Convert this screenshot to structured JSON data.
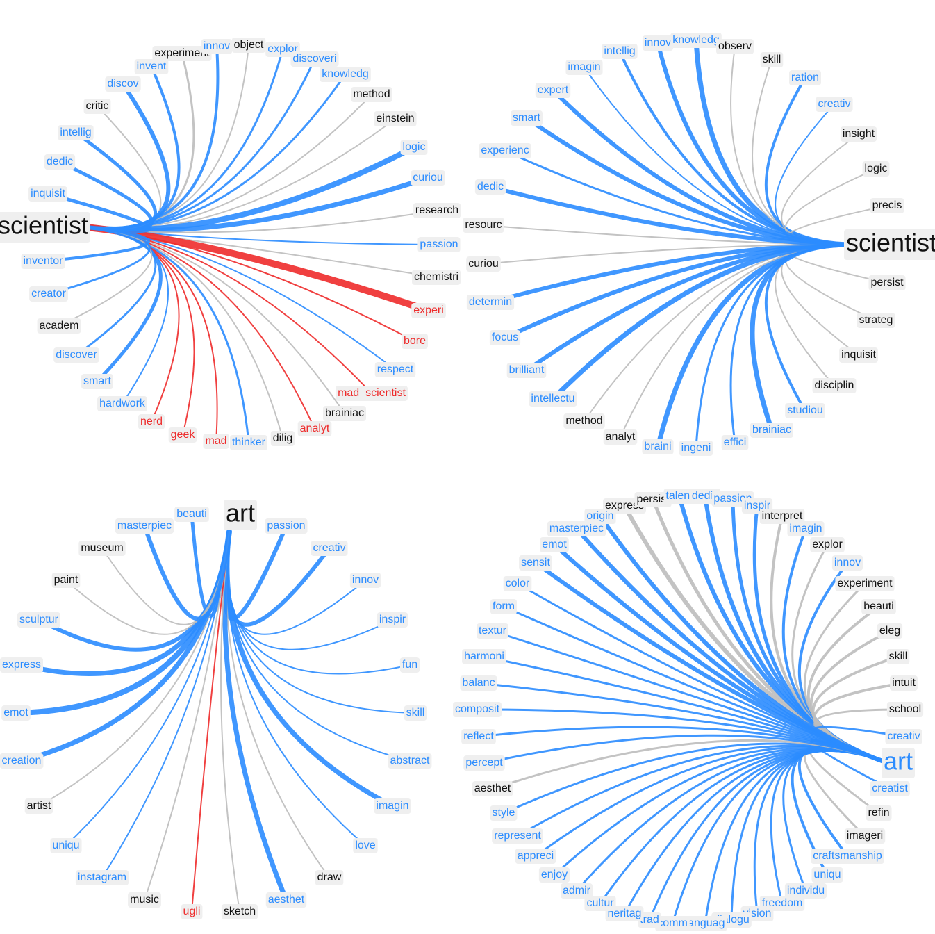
{
  "graphs": [
    {
      "center": {
        "label": "scientist",
        "color": "#111111"
      },
      "nodes": [
        {
          "label": "experiment",
          "color": "#111111"
        },
        {
          "label": "innov",
          "color": "#2b8cff"
        },
        {
          "label": "object",
          "color": "#111111"
        },
        {
          "label": "explor",
          "color": "#2b8cff"
        },
        {
          "label": "discoveri",
          "color": "#2b8cff"
        },
        {
          "label": "knowledg",
          "color": "#2b8cff"
        },
        {
          "label": "method",
          "color": "#111111"
        },
        {
          "label": "einstein",
          "color": "#111111"
        },
        {
          "label": "logic",
          "color": "#2b8cff"
        },
        {
          "label": "curiou",
          "color": "#2b8cff"
        },
        {
          "label": "research",
          "color": "#111111"
        },
        {
          "label": "passion",
          "color": "#2b8cff"
        },
        {
          "label": "chemistri",
          "color": "#111111"
        },
        {
          "label": "experi",
          "color": "#ee2b2b"
        },
        {
          "label": "bore",
          "color": "#ee2b2b"
        },
        {
          "label": "respect",
          "color": "#2b8cff"
        },
        {
          "label": "mad_scientist",
          "color": "#ee2b2b"
        },
        {
          "label": "brainiac",
          "color": "#111111"
        },
        {
          "label": "analyt",
          "color": "#ee2b2b"
        },
        {
          "label": "dilig",
          "color": "#111111"
        },
        {
          "label": "thinker",
          "color": "#2b8cff"
        },
        {
          "label": "mad",
          "color": "#ee2b2b"
        },
        {
          "label": "geek",
          "color": "#ee2b2b"
        },
        {
          "label": "nerd",
          "color": "#ee2b2b"
        },
        {
          "label": "hardwork",
          "color": "#2b8cff"
        },
        {
          "label": "smart",
          "color": "#2b8cff"
        },
        {
          "label": "discover",
          "color": "#2b8cff"
        },
        {
          "label": "academ",
          "color": "#111111"
        },
        {
          "label": "creator",
          "color": "#2b8cff"
        },
        {
          "label": "inventor",
          "color": "#2b8cff"
        },
        {
          "label": "inquisit",
          "color": "#2b8cff"
        },
        {
          "label": "dedic",
          "color": "#2b8cff"
        },
        {
          "label": "intellig",
          "color": "#2b8cff"
        },
        {
          "label": "critic",
          "color": "#111111"
        },
        {
          "label": "discov",
          "color": "#2b8cff"
        },
        {
          "label": "invent",
          "color": "#2b8cff"
        }
      ]
    },
    {
      "center": {
        "label": "scientist",
        "color": "#111111"
      },
      "nodes": [
        {
          "label": "innov",
          "color": "#2b8cff"
        },
        {
          "label": "knowledg",
          "color": "#2b8cff"
        },
        {
          "label": "observ",
          "color": "#111111"
        },
        {
          "label": "skill",
          "color": "#111111"
        },
        {
          "label": "ration",
          "color": "#2b8cff"
        },
        {
          "label": "creativ",
          "color": "#2b8cff"
        },
        {
          "label": "insight",
          "color": "#111111"
        },
        {
          "label": "logic",
          "color": "#111111"
        },
        {
          "label": "precis",
          "color": "#111111"
        },
        {
          "label": "persist",
          "color": "#111111"
        },
        {
          "label": "strateg",
          "color": "#111111"
        },
        {
          "label": "inquisit",
          "color": "#111111"
        },
        {
          "label": "disciplin",
          "color": "#111111"
        },
        {
          "label": "studiou",
          "color": "#2b8cff"
        },
        {
          "label": "brainiac",
          "color": "#2b8cff"
        },
        {
          "label": "effici",
          "color": "#2b8cff"
        },
        {
          "label": "ingeni",
          "color": "#2b8cff"
        },
        {
          "label": "braini",
          "color": "#2b8cff"
        },
        {
          "label": "analyt",
          "color": "#111111"
        },
        {
          "label": "method",
          "color": "#111111"
        },
        {
          "label": "intellectu",
          "color": "#2b8cff"
        },
        {
          "label": "brilliant",
          "color": "#2b8cff"
        },
        {
          "label": "focus",
          "color": "#2b8cff"
        },
        {
          "label": "determin",
          "color": "#2b8cff"
        },
        {
          "label": "curiou",
          "color": "#111111"
        },
        {
          "label": "resourc",
          "color": "#111111"
        },
        {
          "label": "dedic",
          "color": "#2b8cff"
        },
        {
          "label": "experienc",
          "color": "#2b8cff"
        },
        {
          "label": "smart",
          "color": "#2b8cff"
        },
        {
          "label": "expert",
          "color": "#2b8cff"
        },
        {
          "label": "imagin",
          "color": "#2b8cff"
        },
        {
          "label": "intellig",
          "color": "#2b8cff"
        }
      ]
    },
    {
      "center": {
        "label": "art",
        "color": "#111111"
      },
      "nodes": [
        {
          "label": "beauti",
          "color": "#2b8cff"
        },
        {
          "label": "passion",
          "color": "#2b8cff"
        },
        {
          "label": "creativ",
          "color": "#2b8cff"
        },
        {
          "label": "innov",
          "color": "#2b8cff"
        },
        {
          "label": "inspir",
          "color": "#2b8cff"
        },
        {
          "label": "fun",
          "color": "#2b8cff"
        },
        {
          "label": "skill",
          "color": "#2b8cff"
        },
        {
          "label": "abstract",
          "color": "#2b8cff"
        },
        {
          "label": "imagin",
          "color": "#2b8cff"
        },
        {
          "label": "love",
          "color": "#2b8cff"
        },
        {
          "label": "draw",
          "color": "#111111"
        },
        {
          "label": "aesthet",
          "color": "#2b8cff"
        },
        {
          "label": "sketch",
          "color": "#111111"
        },
        {
          "label": "ugli",
          "color": "#ee2b2b"
        },
        {
          "label": "music",
          "color": "#111111"
        },
        {
          "label": "instagram",
          "color": "#2b8cff"
        },
        {
          "label": "uniqu",
          "color": "#2b8cff"
        },
        {
          "label": "artist",
          "color": "#111111"
        },
        {
          "label": "creation",
          "color": "#2b8cff"
        },
        {
          "label": "emot",
          "color": "#2b8cff"
        },
        {
          "label": "express",
          "color": "#2b8cff"
        },
        {
          "label": "sculptur",
          "color": "#2b8cff"
        },
        {
          "label": "paint",
          "color": "#111111"
        },
        {
          "label": "museum",
          "color": "#111111"
        },
        {
          "label": "masterpiec",
          "color": "#2b8cff"
        }
      ]
    },
    {
      "center": {
        "label": "art",
        "color": "#2b8cff"
      },
      "nodes": [
        {
          "label": "express",
          "color": "#111111"
        },
        {
          "label": "persist",
          "color": "#111111"
        },
        {
          "label": "talent",
          "color": "#2b8cff"
        },
        {
          "label": "dedic",
          "color": "#2b8cff"
        },
        {
          "label": "passion",
          "color": "#2b8cff"
        },
        {
          "label": "inspir",
          "color": "#2b8cff"
        },
        {
          "label": "interpret",
          "color": "#111111"
        },
        {
          "label": "imagin",
          "color": "#2b8cff"
        },
        {
          "label": "explor",
          "color": "#111111"
        },
        {
          "label": "innov",
          "color": "#2b8cff"
        },
        {
          "label": "experiment",
          "color": "#111111"
        },
        {
          "label": "beauti",
          "color": "#111111"
        },
        {
          "label": "eleg",
          "color": "#111111"
        },
        {
          "label": "skill",
          "color": "#111111"
        },
        {
          "label": "intuit",
          "color": "#111111"
        },
        {
          "label": "school",
          "color": "#111111"
        },
        {
          "label": "creativ",
          "color": "#2b8cff"
        },
        {
          "label": "creatist",
          "color": "#2b8cff"
        },
        {
          "label": "refin",
          "color": "#111111"
        },
        {
          "label": "imageri",
          "color": "#111111"
        },
        {
          "label": "craftsmanship",
          "color": "#2b8cff"
        },
        {
          "label": "uniqu",
          "color": "#2b8cff"
        },
        {
          "label": "individu",
          "color": "#2b8cff"
        },
        {
          "label": "freedom",
          "color": "#2b8cff"
        },
        {
          "label": "vision",
          "color": "#2b8cff"
        },
        {
          "label": "dialogu",
          "color": "#2b8cff"
        },
        {
          "label": "languag",
          "color": "#2b8cff"
        },
        {
          "label": "comm",
          "color": "#2b8cff"
        },
        {
          "label": "trad",
          "color": "#2b8cff"
        },
        {
          "label": "heritag",
          "color": "#2b8cff"
        },
        {
          "label": "cultur",
          "color": "#2b8cff"
        },
        {
          "label": "admir",
          "color": "#2b8cff"
        },
        {
          "label": "enjoy",
          "color": "#2b8cff"
        },
        {
          "label": "appreci",
          "color": "#2b8cff"
        },
        {
          "label": "represent",
          "color": "#2b8cff"
        },
        {
          "label": "style",
          "color": "#2b8cff"
        },
        {
          "label": "aesthet",
          "color": "#111111"
        },
        {
          "label": "percept",
          "color": "#2b8cff"
        },
        {
          "label": "reflect",
          "color": "#2b8cff"
        },
        {
          "label": "composit",
          "color": "#2b8cff"
        },
        {
          "label": "balanc",
          "color": "#2b8cff"
        },
        {
          "label": "harmoni",
          "color": "#2b8cff"
        },
        {
          "label": "textur",
          "color": "#2b8cff"
        },
        {
          "label": "form",
          "color": "#2b8cff"
        },
        {
          "label": "color",
          "color": "#2b8cff"
        },
        {
          "label": "sensit",
          "color": "#2b8cff"
        },
        {
          "label": "emot",
          "color": "#2b8cff"
        },
        {
          "label": "masterpiec",
          "color": "#2b8cff"
        },
        {
          "label": "origin",
          "color": "#2b8cff"
        }
      ]
    }
  ]
}
